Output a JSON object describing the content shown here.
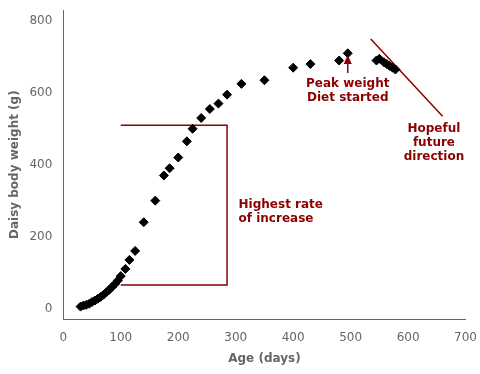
{
  "chart_data": {
    "type": "scatter",
    "xlabel": "Age (days)",
    "ylabel": "Daisy body weight (g)",
    "xlim": [
      0,
      700
    ],
    "ylim": [
      -30,
      830
    ],
    "xticks": [
      0,
      100,
      200,
      300,
      400,
      500,
      600,
      700
    ],
    "yticks": [
      0,
      200,
      400,
      600,
      800
    ],
    "grid": false,
    "series": [
      {
        "type": "scatter",
        "color": "black",
        "marker": "diamond",
        "x": [
          30,
          35,
          40,
          45,
          50,
          55,
          60,
          65,
          70,
          75,
          80,
          85,
          90,
          95,
          100,
          108,
          115,
          125,
          140,
          160,
          175,
          185,
          200,
          215,
          225,
          240,
          255,
          270,
          285,
          310,
          350,
          400,
          430,
          480,
          495,
          545,
          550,
          558,
          563,
          568,
          573,
          578
        ],
        "values": [
          5,
          8,
          10,
          13,
          18,
          22,
          27,
          32,
          38,
          45,
          52,
          60,
          68,
          78,
          90,
          110,
          135,
          160,
          240,
          300,
          370,
          390,
          420,
          465,
          500,
          530,
          555,
          570,
          595,
          625,
          635,
          670,
          680,
          690,
          710,
          690,
          695,
          685,
          680,
          675,
          670,
          665
        ]
      },
      {
        "type": "line",
        "color": "#8B0000",
        "x": [
          100,
          285,
          285,
          100
        ],
        "values": [
          510,
          510,
          65,
          65
        ]
      },
      {
        "type": "line",
        "color": "#8B0000",
        "x": [
          535,
          660
        ],
        "values": [
          750,
          535
        ]
      },
      {
        "type": "arrow",
        "color": "#8B0000",
        "x": [
          495,
          495
        ],
        "values": [
          655,
          705
        ]
      }
    ],
    "annotations": [
      {
        "text": "Highest rate\nof increase",
        "x": 305,
        "y": 270,
        "color": "#8B0000"
      },
      {
        "text": "Peak weight\nDiet started",
        "x": 495,
        "y": 645,
        "color": "#8B0000"
      },
      {
        "text": "Hopeful\nfuture\ndirection",
        "x": 645,
        "y": 520,
        "color": "#8B0000"
      }
    ]
  }
}
